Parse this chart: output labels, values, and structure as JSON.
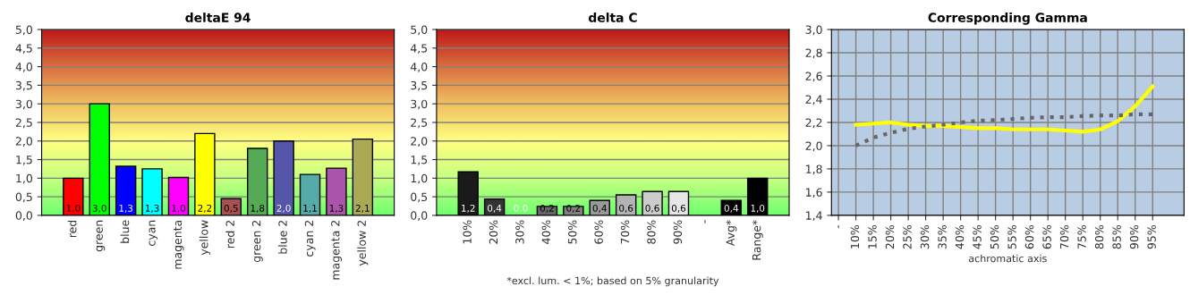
{
  "chart_data": [
    {
      "type": "bar",
      "title": "deltaE 94",
      "categories": [
        "red",
        "green",
        "blue",
        "cyan",
        "magenta",
        "yellow",
        "red 2",
        "green 2",
        "blue 2",
        "cyan 2",
        "magenta 2",
        "yellow 2"
      ],
      "values": [
        1.0,
        3.0,
        1.32,
        1.25,
        1.02,
        2.2,
        0.45,
        1.8,
        2.0,
        1.1,
        1.27,
        2.05
      ],
      "value_labels": [
        "1,0",
        "3,0",
        "1,3",
        "1,3",
        "1,0",
        "2,2",
        "0,5",
        "1,8",
        "2,0",
        "1,1",
        "1,3",
        "2,1"
      ],
      "colors": [
        "#ff0000",
        "#00ff00",
        "#0000ff",
        "#00ffff",
        "#ff00ff",
        "#ffff00",
        "#a85050",
        "#55aa55",
        "#5555aa",
        "#55aaaa",
        "#aa55aa",
        "#aaaa55"
      ],
      "ylim": [
        0,
        5
      ],
      "yticks": [
        {
          "value": 0,
          "label": "0,0"
        },
        {
          "value": 0.5,
          "label": "0,5"
        },
        {
          "value": 1,
          "label": "1,0"
        },
        {
          "value": 1.5,
          "label": "1,5"
        },
        {
          "value": 2,
          "label": "2,0"
        },
        {
          "value": 2.5,
          "label": "2,5"
        },
        {
          "value": 3,
          "label": "3,0"
        },
        {
          "value": 3.5,
          "label": "3,5"
        },
        {
          "value": 4,
          "label": "4,0"
        },
        {
          "value": 4.5,
          "label": "4,5"
        },
        {
          "value": 5,
          "label": "5,0"
        }
      ],
      "grid": "y"
    },
    {
      "type": "bar",
      "title": "delta C",
      "categories": [
        "10%",
        "20%",
        "30%",
        "40%",
        "50%",
        "60%",
        "70%",
        "80%",
        "90%",
        "-",
        "Avg*",
        "Range*"
      ],
      "values": [
        1.17,
        0.44,
        0.0,
        0.24,
        0.24,
        0.4,
        0.55,
        0.64,
        0.64,
        null,
        0.4,
        1.0
      ],
      "value_labels": [
        "1,2",
        "0,4",
        "0,0",
        "0,2",
        "0,2",
        "0,4",
        "0,6",
        "0,6",
        "0,6",
        null,
        "0,4",
        "1,0"
      ],
      "colors": [
        "#1a1a1a",
        "#333333",
        "#4d4d4d",
        "#666666",
        "#808080",
        "#999999",
        "#b3b3b3",
        "#cccccc",
        "#e6e6e6",
        "#000000",
        "#000000",
        "#000000"
      ],
      "ylim": [
        0,
        5
      ],
      "yticks": [
        {
          "value": 0,
          "label": "0,0"
        },
        {
          "value": 0.5,
          "label": "0,5"
        },
        {
          "value": 1,
          "label": "1,0"
        },
        {
          "value": 1.5,
          "label": "1,5"
        },
        {
          "value": 2,
          "label": "2,0"
        },
        {
          "value": 2.5,
          "label": "2,5"
        },
        {
          "value": 3,
          "label": "3,0"
        },
        {
          "value": 3.5,
          "label": "3,5"
        },
        {
          "value": 4,
          "label": "4,0"
        },
        {
          "value": 4.5,
          "label": "4,5"
        },
        {
          "value": 5,
          "label": "5,0"
        }
      ],
      "grid": "y",
      "annotations": [
        "*excl. lum. < 1%; based on 5% granularity"
      ]
    },
    {
      "type": "line",
      "title": "Corresponding Gamma",
      "xlabel": "achromatic axis",
      "categories": [
        "-",
        "10%",
        "15%",
        "20%",
        "25%",
        "30%",
        "35%",
        "40%",
        "45%",
        "50%",
        "55%",
        "60%",
        "65%",
        "70%",
        "75%",
        "80%",
        "85%",
        "90%",
        "95%"
      ],
      "series": [
        {
          "color": "#ffff00",
          "line_style": "solid",
          "values": [
            null,
            2.18,
            2.19,
            2.2,
            2.18,
            2.17,
            2.17,
            2.16,
            2.15,
            2.15,
            2.14,
            2.14,
            2.14,
            2.13,
            2.12,
            2.14,
            2.21,
            2.34,
            2.51
          ]
        },
        {
          "color": "#666666",
          "line_style": "dotted",
          "values": [
            null,
            2.0,
            2.07,
            2.11,
            2.145,
            2.165,
            2.18,
            2.2,
            2.215,
            2.22,
            2.23,
            2.24,
            2.245,
            2.245,
            2.255,
            2.26,
            2.26,
            2.27,
            2.27
          ]
        }
      ],
      "ylim": [
        1.4,
        3.0
      ],
      "yticks": [
        {
          "value": 1.4,
          "label": "1,4"
        },
        {
          "value": 1.6,
          "label": "1,6"
        },
        {
          "value": 1.8,
          "label": "1,8"
        },
        {
          "value": 2.0,
          "label": "2,0"
        },
        {
          "value": 2.2,
          "label": "2,2"
        },
        {
          "value": 2.4,
          "label": "2,4"
        },
        {
          "value": 2.6,
          "label": "2,6"
        },
        {
          "value": 2.8,
          "label": "2,8"
        },
        {
          "value": 3.0,
          "label": "3,0"
        }
      ],
      "grid": true
    }
  ]
}
